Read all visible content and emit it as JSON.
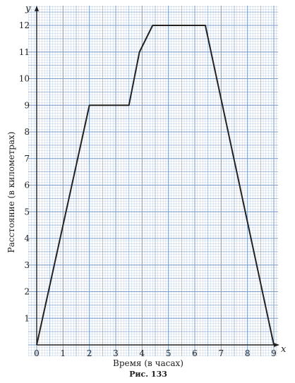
{
  "chart_data": {
    "type": "line",
    "title": "",
    "xlabel": "Время (в часах)",
    "ylabel": "Расстояние (в километрах)",
    "x_axis_letter": "x",
    "y_axis_letter": "y",
    "origin_label": "0",
    "xlim": [
      0,
      9
    ],
    "ylim": [
      0,
      12
    ],
    "grid": true,
    "x_ticks": [
      "1",
      "2",
      "3",
      "4",
      "5",
      "6",
      "7",
      "8",
      "9"
    ],
    "y_ticks": [
      "1",
      "2",
      "3",
      "4",
      "5",
      "6",
      "7",
      "8",
      "9",
      "10",
      "11",
      "12"
    ],
    "series": [
      {
        "x": [
          0,
          2,
          3.5,
          3.9,
          4.4,
          6.4,
          9
        ],
        "y": [
          0,
          9,
          9,
          11,
          12,
          12,
          0
        ]
      }
    ],
    "caption": "Рис. 133",
    "colors": {
      "grid": "#7a9cc8",
      "line": "#222222",
      "axis": "#222222"
    }
  }
}
